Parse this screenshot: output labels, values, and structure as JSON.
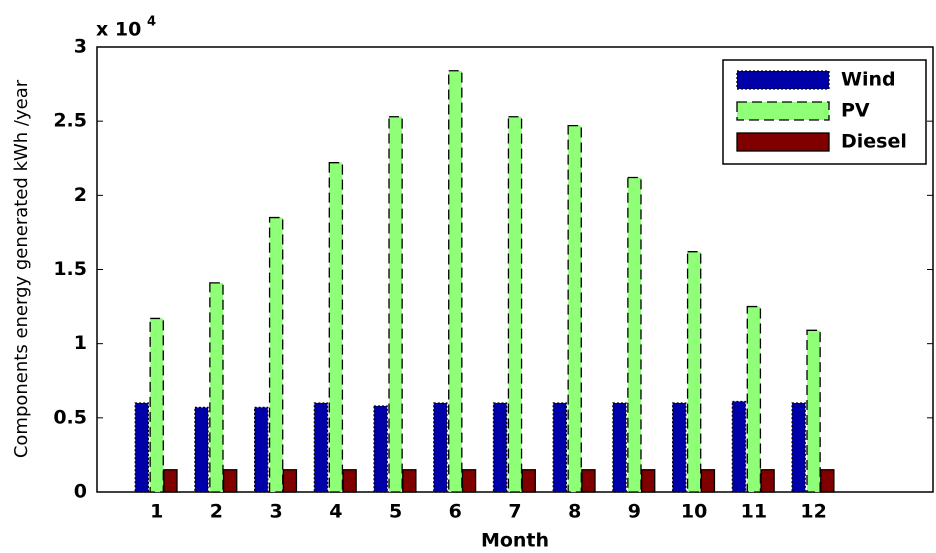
{
  "chart_data": {
    "type": "bar",
    "y_scale_label": "x 10",
    "y_scale_exponent": "4",
    "x_label": "Month",
    "y_label": "Components energy generated kWh /year",
    "x": [
      1,
      2,
      3,
      4,
      5,
      6,
      7,
      8,
      9,
      10,
      11,
      12
    ],
    "xlim": [
      0,
      14
    ],
    "xticks": [
      1,
      2,
      3,
      4,
      5,
      6,
      7,
      8,
      9,
      10,
      11,
      12
    ],
    "ylim": [
      0,
      3
    ],
    "yticks": [
      0,
      0.5,
      1,
      1.5,
      2,
      2.5,
      3
    ],
    "legend": "upper right",
    "series": [
      {
        "name": "Wind",
        "color": "#0000a8",
        "edge": "dotted",
        "values": [
          0.6,
          0.57,
          0.57,
          0.6,
          0.58,
          0.6,
          0.6,
          0.6,
          0.6,
          0.6,
          0.61,
          0.6
        ]
      },
      {
        "name": "PV",
        "color": "#90ff78",
        "edge": "dashed",
        "values": [
          1.17,
          1.41,
          1.85,
          2.22,
          2.53,
          2.84,
          2.53,
          2.47,
          2.12,
          1.62,
          1.25,
          1.09
        ]
      },
      {
        "name": "Diesel",
        "color": "#800000",
        "edge": "solid",
        "values": [
          0.15,
          0.15,
          0.15,
          0.15,
          0.15,
          0.15,
          0.15,
          0.15,
          0.15,
          0.15,
          0.15,
          0.15
        ]
      }
    ]
  }
}
